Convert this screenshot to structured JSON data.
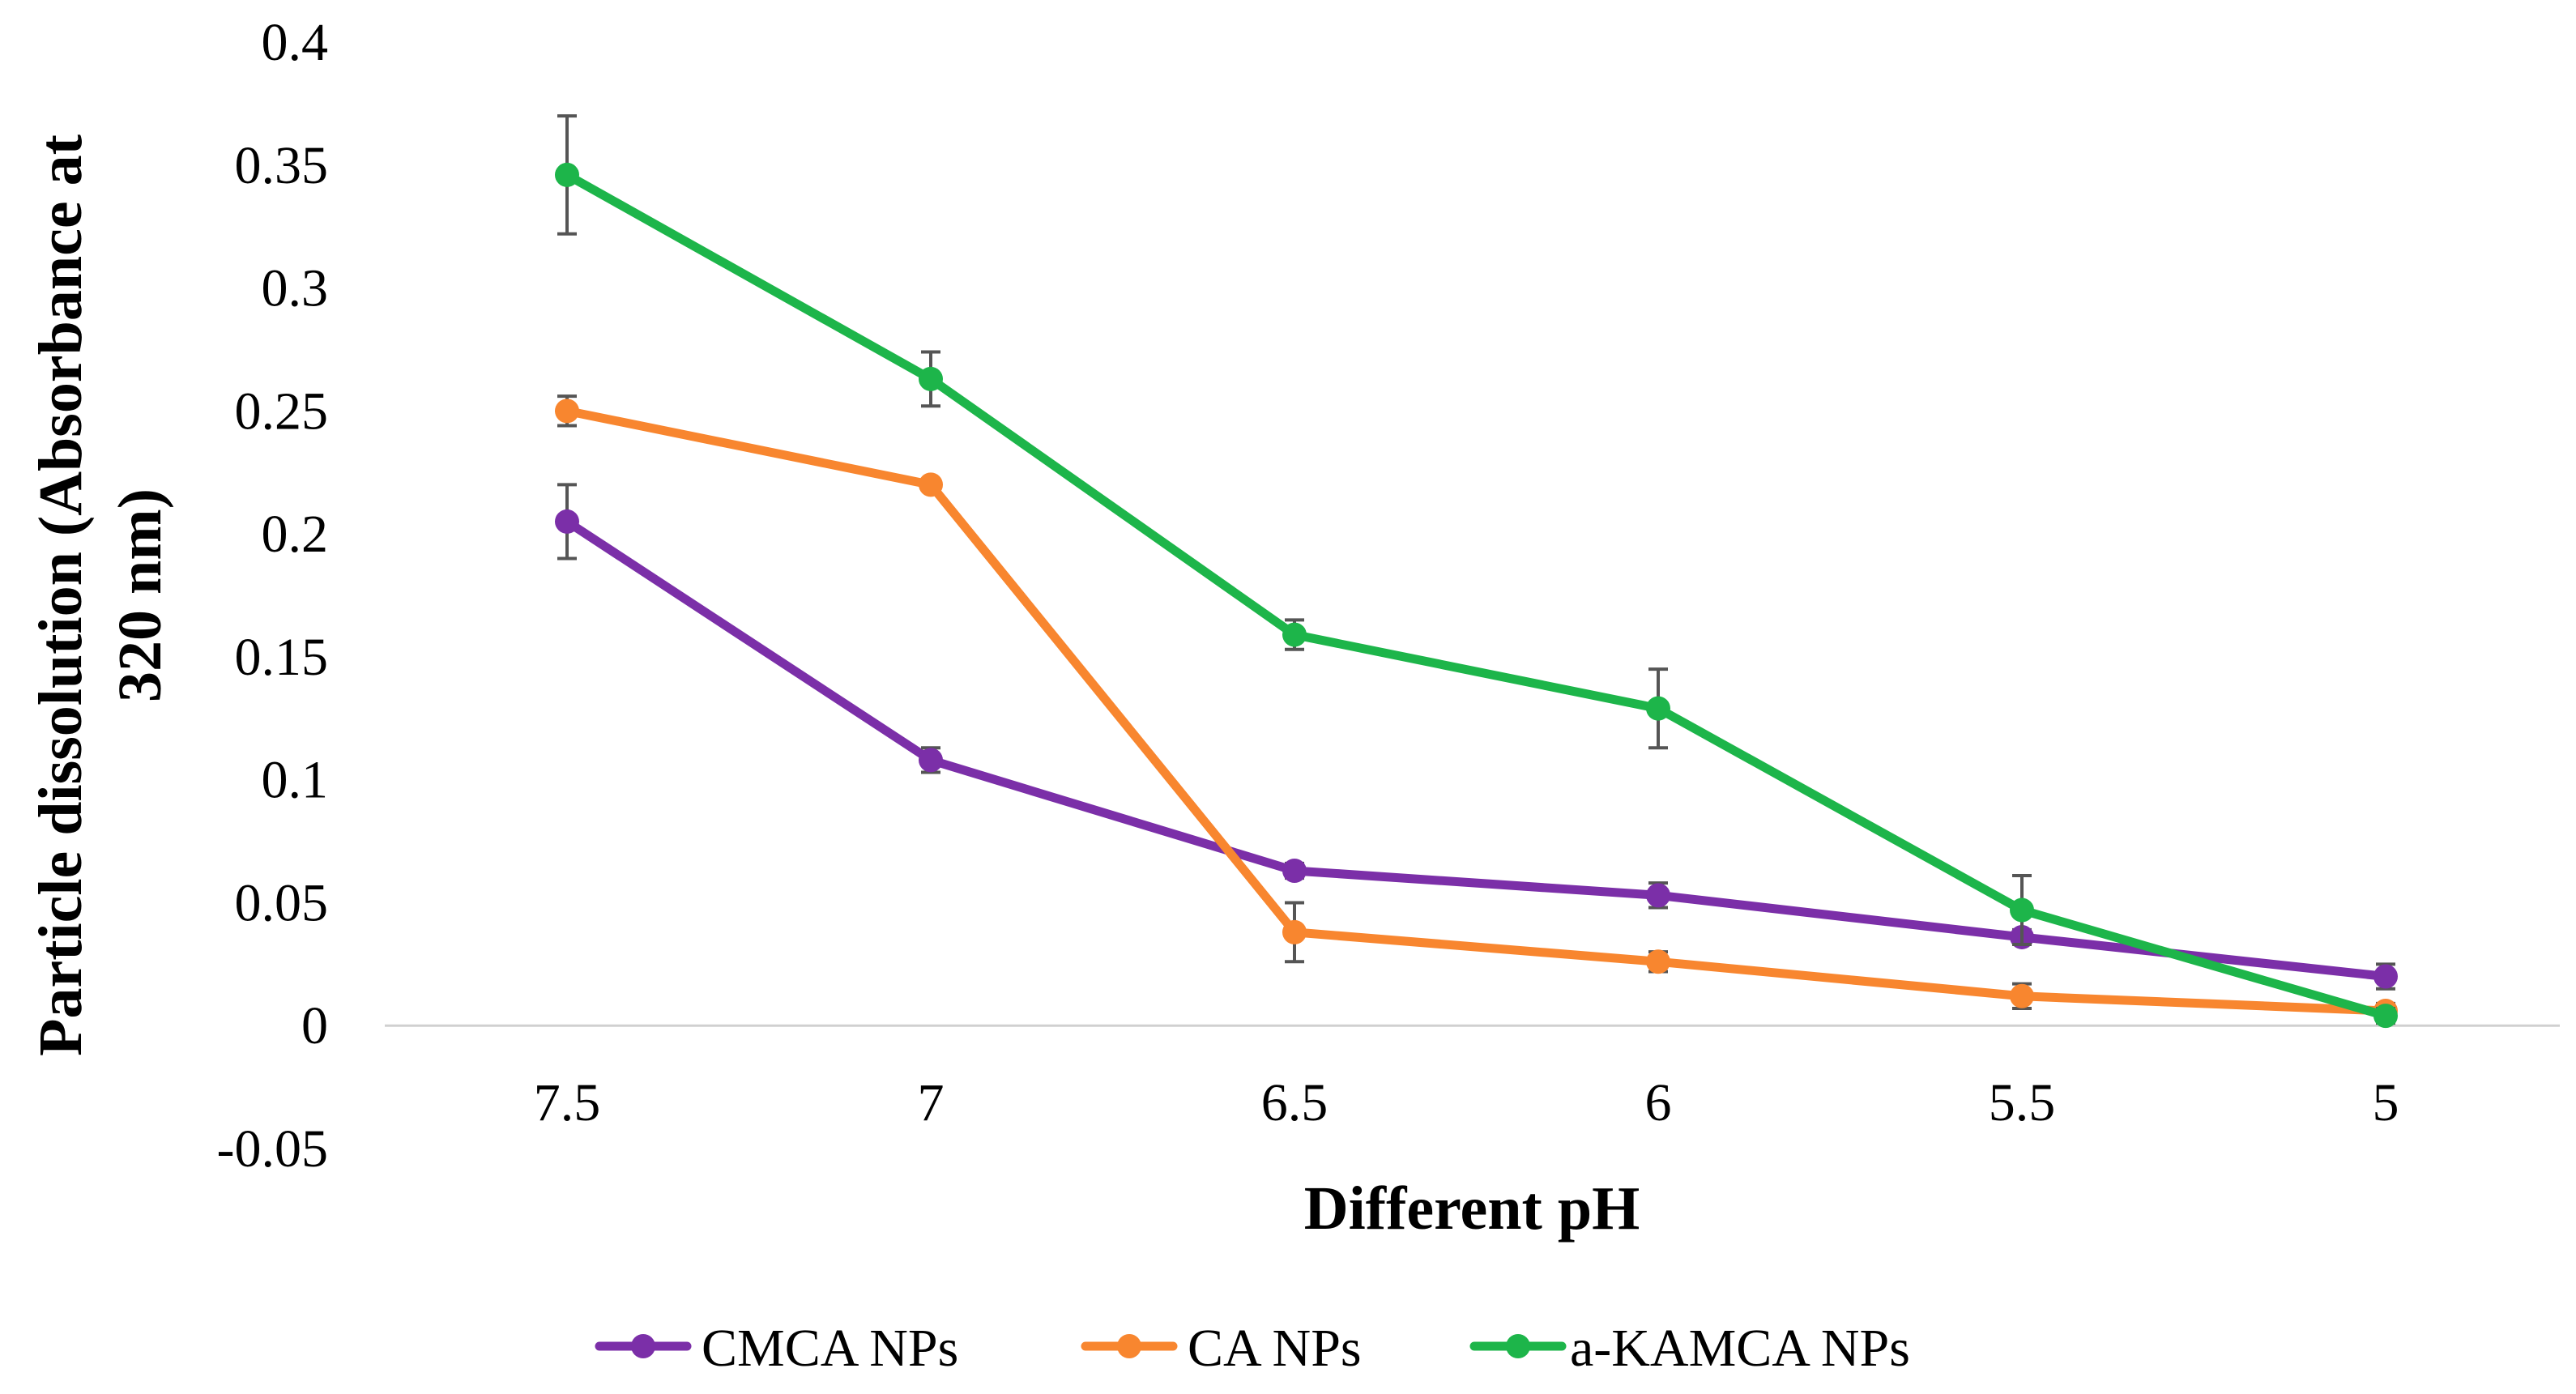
{
  "chart_data": {
    "type": "line",
    "title": "",
    "xlabel": "Different pH",
    "ylabel_lines": [
      "Particle dissolution (Absorbance at",
      "320 nm)"
    ],
    "categories": [
      "7.5",
      "7",
      "6.5",
      "6",
      "5.5",
      "5"
    ],
    "ylim": [
      -0.05,
      0.4
    ],
    "y_ticks": [
      -0.05,
      0,
      0.05,
      0.1,
      0.15,
      0.2,
      0.25,
      0.3,
      0.35,
      0.4
    ],
    "y_tick_labels": [
      "-0.05",
      "0",
      "0.05",
      "0.1",
      "0.15",
      "0.2",
      "0.25",
      "0.3",
      "0.35",
      "0.4"
    ],
    "grid": false,
    "legend_position": "bottom",
    "series": [
      {
        "name": "CMCA NPs",
        "color": "#7B2FA8",
        "values": [
          0.205,
          0.108,
          0.063,
          0.053,
          0.036,
          0.02
        ],
        "errors": [
          0.015,
          0.005,
          0.003,
          0.005,
          0.003,
          0.005
        ]
      },
      {
        "name": "CA NPs",
        "color": "#F8862F",
        "values": [
          0.25,
          0.22,
          0.038,
          0.026,
          0.012,
          0.006
        ],
        "errors": [
          0.006,
          0.002,
          0.012,
          0.004,
          0.005,
          0.003
        ]
      },
      {
        "name": "a-KAMCA NPs",
        "color": "#1DB54A",
        "values": [
          0.346,
          0.263,
          0.159,
          0.129,
          0.047,
          0.004
        ],
        "errors": [
          0.024,
          0.011,
          0.006,
          0.016,
          0.014,
          0.003
        ]
      }
    ],
    "error_bar_color": "#555555"
  }
}
